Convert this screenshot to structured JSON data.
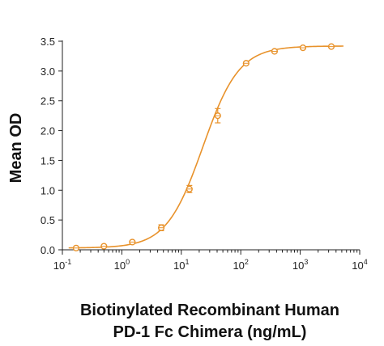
{
  "chart_data": {
    "type": "scatter",
    "title": "",
    "xlabel": "Biotinylated Recombinant Human\nPD-1 Fc Chimera (ng/mL)",
    "ylabel": "Mean OD",
    "x_scale": "log",
    "xlim": [
      0.1,
      10000
    ],
    "ylim": [
      0,
      3.5
    ],
    "x_ticks": [
      {
        "value": 0.1,
        "base": "10",
        "exp": "-1"
      },
      {
        "value": 1,
        "base": "10",
        "exp": "0"
      },
      {
        "value": 10,
        "base": "10",
        "exp": "1"
      },
      {
        "value": 100,
        "base": "10",
        "exp": "2"
      },
      {
        "value": 1000,
        "base": "10",
        "exp": "3"
      },
      {
        "value": 10000,
        "base": "10",
        "exp": "4"
      }
    ],
    "y_ticks": [
      "0.0",
      "0.5",
      "1.0",
      "1.5",
      "2.0",
      "2.5",
      "3.0",
      "3.5"
    ],
    "grid": false,
    "color": "#E8922B",
    "series": [
      {
        "points": [
          {
            "x": 0.17,
            "y": 0.03,
            "err": 0.01
          },
          {
            "x": 0.5,
            "y": 0.06,
            "err": 0.01
          },
          {
            "x": 1.5,
            "y": 0.13,
            "err": 0.02
          },
          {
            "x": 4.6,
            "y": 0.37,
            "err": 0.05
          },
          {
            "x": 13.7,
            "y": 1.02,
            "err": 0.06
          },
          {
            "x": 41,
            "y": 2.25,
            "err": 0.12
          },
          {
            "x": 123,
            "y": 3.13,
            "err": 0.02
          },
          {
            "x": 370,
            "y": 3.33,
            "err": 0.02
          },
          {
            "x": 1111,
            "y": 3.39,
            "err": 0.02
          },
          {
            "x": 3333,
            "y": 3.41,
            "err": 0.02
          }
        ],
        "fit": {
          "model": "4PL",
          "bottom": 0.03,
          "top": 3.42,
          "ec50": 23,
          "hill": 1.42
        }
      }
    ]
  }
}
